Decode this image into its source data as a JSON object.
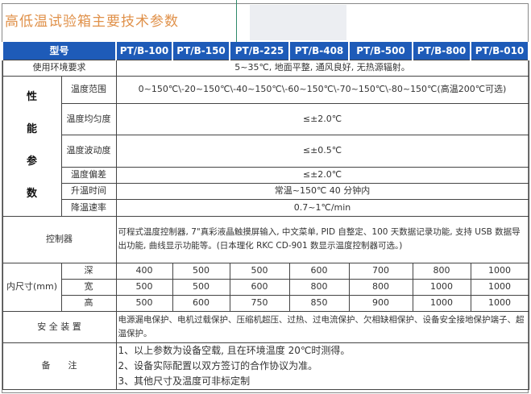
{
  "title": "高低温试验箱主要技术参数",
  "header": {
    "model_label": "型号",
    "models": [
      "PT/B-100",
      "PT/B-150",
      "PT/B-225",
      "PT/B-408",
      "PT/B-500",
      "PT/B-800",
      "PT/B-010"
    ]
  },
  "env": {
    "label": "使用环境要求",
    "value": "5~35℃, 地面平整, 通风良好, 无热源辐射。"
  },
  "performance": {
    "group_label": [
      "性",
      "能",
      "参",
      "数"
    ],
    "rows": [
      {
        "label": "温度范围",
        "value": "0~150℃\\-20~150℃\\-40~150℃\\-60~150℃\\-70~150℃\\-80~150℃(高温200℃可选)"
      },
      {
        "label": "温度均匀度",
        "value": "≤±2.0℃"
      },
      {
        "label": "温度波动度",
        "value": "≤±0.5℃"
      },
      {
        "label": "温度偏差",
        "value": "≤±2.0℃"
      },
      {
        "label": "升温时间",
        "value": "常温~150℃ 40 分钟内"
      },
      {
        "label": "降温速率",
        "value": "0.7~1℃/min"
      }
    ]
  },
  "controller": {
    "label": "控制器",
    "value": "可程式温度控制器, 7\"真彩液晶触摸屏输入, 中文菜单, PID 自整定、100 天数据记录功能, 支持 USB 数据导出功能, 曲线显示功能等。(日本理化 RKC CD-901 数显示温度控制器可选。)"
  },
  "dimensions": {
    "label": "内尺寸(mm)",
    "rows": [
      {
        "label": "深",
        "values": [
          "400",
          "500",
          "500",
          "600",
          "700",
          "800",
          "1000"
        ]
      },
      {
        "label": "宽",
        "values": [
          "500",
          "500",
          "600",
          "800",
          "800",
          "1000",
          "1000"
        ]
      },
      {
        "label": "高",
        "values": [
          "500",
          "600",
          "750",
          "850",
          "900",
          "1000",
          "1000"
        ]
      }
    ]
  },
  "safety": {
    "label": "安 全 装 置",
    "value": "电源漏电保护、电机过载保护、压缩机超压、过热、过电流保护、欠相缺相保护、设备安全接地保护端子、超温保护。"
  },
  "notes": {
    "label": "备　　注",
    "items": [
      "1、以上参数为设备空载, 且在环境温度 20℃时测得。",
      "2、设备实际配置以双方签订的合作协议为准。",
      "3、其他尺寸及温度可非标定制"
    ]
  },
  "colors": {
    "header_bg": "#1e5bb8",
    "title": "#e0914a"
  }
}
